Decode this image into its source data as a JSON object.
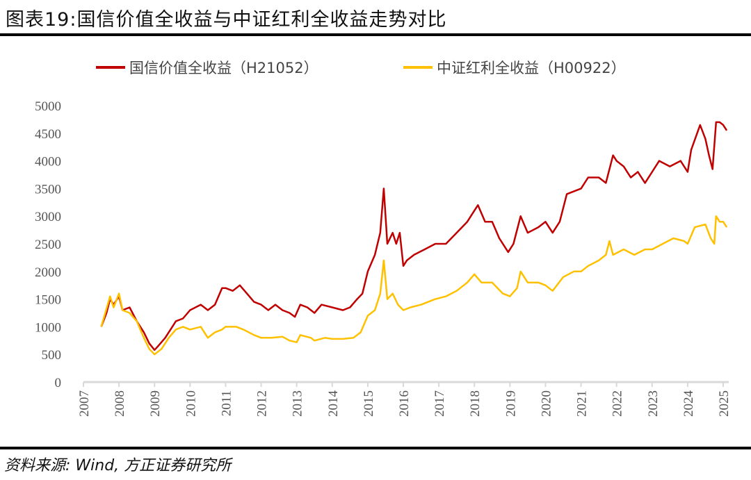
{
  "title": "图表19:国信价值全收益与中证红利全收益走势对比",
  "source": "资料来源: Wind, 方正证券研究所",
  "chart_data": {
    "type": "line",
    "title": "图表19:国信价值全收益与中证红利全收益走势对比",
    "xlabel": "",
    "ylabel": "",
    "xlim": [
      2007,
      2025
    ],
    "ylim": [
      0,
      5000
    ],
    "x_ticks": [
      "2007",
      "2008",
      "2009",
      "2010",
      "2011",
      "2012",
      "2013",
      "2014",
      "2015",
      "2016",
      "2017",
      "2018",
      "2019",
      "2020",
      "2021",
      "2022",
      "2023",
      "2024",
      "2025"
    ],
    "y_ticks": [
      "0",
      "500",
      "1000",
      "1500",
      "2000",
      "2500",
      "3000",
      "3500",
      "4000",
      "4500",
      "5000"
    ],
    "grid": false,
    "legend_position": "top",
    "series": [
      {
        "name": "国信价值全收益（H21052）",
        "color": "#C00000",
        "x": [
          2007.5,
          2007.65,
          2007.75,
          2007.85,
          2008.0,
          2008.1,
          2008.3,
          2008.5,
          2008.7,
          2008.85,
          2009.0,
          2009.1,
          2009.3,
          2009.5,
          2009.6,
          2009.8,
          2010.0,
          2010.3,
          2010.5,
          2010.7,
          2010.9,
          2011.0,
          2011.2,
          2011.4,
          2011.6,
          2011.8,
          2012.0,
          2012.2,
          2012.4,
          2012.6,
          2012.8,
          2012.95,
          2013.1,
          2013.3,
          2013.5,
          2013.7,
          2014.0,
          2014.3,
          2014.5,
          2014.7,
          2014.85,
          2015.0,
          2015.2,
          2015.35,
          2015.45,
          2015.55,
          2015.7,
          2015.8,
          2015.9,
          2016.0,
          2016.1,
          2016.3,
          2016.6,
          2016.9,
          2017.2,
          2017.5,
          2017.8,
          2018.0,
          2018.1,
          2018.3,
          2018.5,
          2018.7,
          2018.95,
          2019.1,
          2019.3,
          2019.5,
          2019.8,
          2020.0,
          2020.2,
          2020.4,
          2020.6,
          2020.8,
          2021.0,
          2021.2,
          2021.5,
          2021.7,
          2021.9,
          2022.0,
          2022.2,
          2022.4,
          2022.6,
          2022.8,
          2023.0,
          2023.2,
          2023.5,
          2023.8,
          2024.0,
          2024.1,
          2024.35,
          2024.5,
          2024.6,
          2024.7,
          2024.8,
          2024.9,
          2025.0,
          2025.1
        ],
        "values": [
          1000,
          1250,
          1500,
          1400,
          1550,
          1300,
          1350,
          1100,
          900,
          700,
          580,
          650,
          800,
          1000,
          1100,
          1150,
          1300,
          1400,
          1300,
          1400,
          1700,
          1700,
          1650,
          1750,
          1600,
          1450,
          1400,
          1300,
          1400,
          1300,
          1250,
          1180,
          1400,
          1350,
          1250,
          1400,
          1350,
          1300,
          1350,
          1500,
          1600,
          2000,
          2300,
          2700,
          3500,
          2500,
          2700,
          2500,
          2700,
          2100,
          2200,
          2300,
          2400,
          2500,
          2500,
          2700,
          2900,
          3100,
          3200,
          2900,
          2900,
          2600,
          2350,
          2500,
          3000,
          2700,
          2800,
          2900,
          2700,
          2900,
          3400,
          3450,
          3500,
          3700,
          3700,
          3600,
          4100,
          4000,
          3900,
          3700,
          3800,
          3600,
          3800,
          4000,
          3900,
          4000,
          3800,
          4200,
          4650,
          4400,
          4100,
          3850,
          4700,
          4700,
          4650,
          4550
        ]
      },
      {
        "name": "中证红利全收益（H00922）",
        "color": "#FFC000",
        "x": [
          2007.5,
          2007.75,
          2007.85,
          2008.0,
          2008.1,
          2008.3,
          2008.5,
          2008.7,
          2008.85,
          2009.0,
          2009.2,
          2009.4,
          2009.6,
          2009.8,
          2010.0,
          2010.3,
          2010.5,
          2010.7,
          2010.9,
          2011.0,
          2011.3,
          2011.5,
          2011.8,
          2012.0,
          2012.3,
          2012.6,
          2012.8,
          2013.0,
          2013.1,
          2013.4,
          2013.5,
          2013.8,
          2014.0,
          2014.3,
          2014.6,
          2014.8,
          2015.0,
          2015.2,
          2015.35,
          2015.45,
          2015.55,
          2015.7,
          2015.85,
          2016.0,
          2016.2,
          2016.5,
          2016.9,
          2017.2,
          2017.5,
          2017.8,
          2018.0,
          2018.2,
          2018.5,
          2018.8,
          2019.0,
          2019.2,
          2019.3,
          2019.5,
          2019.8,
          2020.0,
          2020.2,
          2020.5,
          2020.8,
          2021.0,
          2021.2,
          2021.5,
          2021.7,
          2021.8,
          2021.9,
          2022.2,
          2022.5,
          2022.8,
          2023.0,
          2023.3,
          2023.6,
          2023.9,
          2024.0,
          2024.2,
          2024.5,
          2024.65,
          2024.75,
          2024.8,
          2024.9,
          2025.0,
          2025.1
        ],
        "values": [
          1000,
          1550,
          1350,
          1600,
          1300,
          1250,
          1100,
          800,
          600,
          500,
          600,
          800,
          950,
          1000,
          950,
          1000,
          800,
          900,
          950,
          1000,
          1000,
          950,
          850,
          800,
          800,
          820,
          750,
          720,
          850,
          800,
          750,
          800,
          780,
          780,
          800,
          900,
          1200,
          1300,
          1600,
          2200,
          1500,
          1600,
          1400,
          1300,
          1350,
          1400,
          1500,
          1550,
          1650,
          1800,
          1950,
          1800,
          1800,
          1600,
          1550,
          1700,
          2000,
          1800,
          1800,
          1750,
          1650,
          1900,
          2000,
          2000,
          2100,
          2200,
          2300,
          2550,
          2300,
          2400,
          2300,
          2400,
          2400,
          2500,
          2600,
          2550,
          2500,
          2800,
          2850,
          2600,
          2500,
          3000,
          2900,
          2900,
          2800
        ]
      }
    ]
  }
}
